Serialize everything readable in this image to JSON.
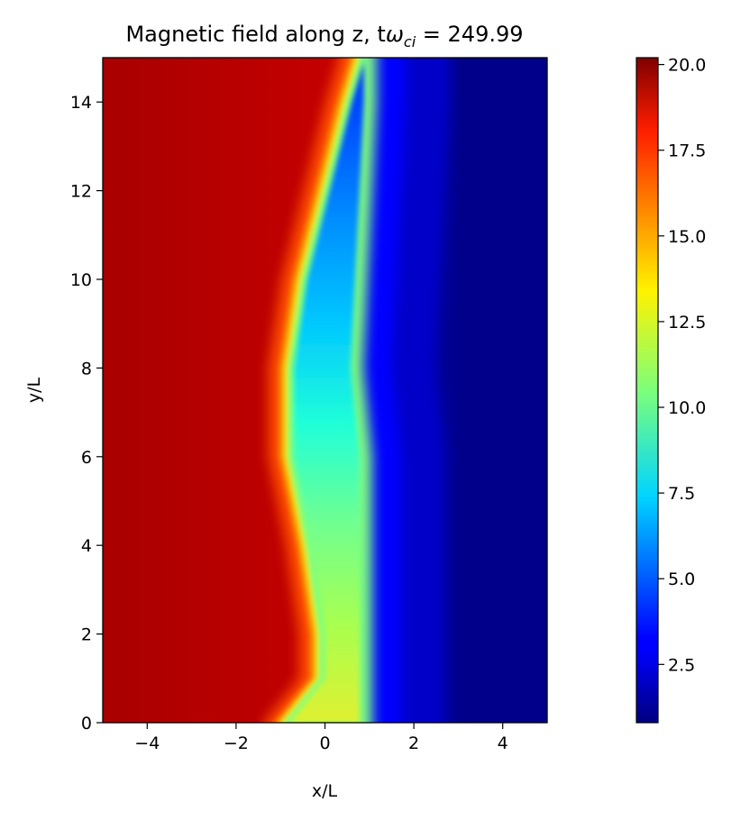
{
  "chart_data": {
    "type": "heatmap",
    "title_text": "Magnetic field along z, t",
    "title_symbol": "ω",
    "title_subscript": "ci",
    "title_value": " = 249.99",
    "xlabel": "x/L",
    "ylabel": "y/L",
    "xlim": [
      -5,
      5
    ],
    "ylim": [
      0,
      15
    ],
    "x_ticks": [
      -4,
      -2,
      0,
      2,
      4
    ],
    "x_tick_labels": [
      "−4",
      "−2",
      "0",
      "2",
      "4"
    ],
    "y_ticks": [
      0,
      2,
      4,
      6,
      8,
      10,
      12,
      14
    ],
    "y_tick_labels": [
      "0",
      "2",
      "4",
      "6",
      "8",
      "10",
      "12",
      "14"
    ],
    "colorbar": {
      "range": [
        0.8,
        20.2
      ],
      "ticks": [
        2.5,
        5.0,
        7.5,
        10.0,
        12.5,
        15.0,
        17.5,
        20.0
      ],
      "tick_labels": [
        "2.5",
        "5.0",
        "7.5",
        "10.0",
        "12.5",
        "15.0",
        "17.5",
        "20.0"
      ],
      "colormap": "jet"
    },
    "field_description": {
      "high_value_left": 19.5,
      "low_value_right": 1.0,
      "interface_profile": [
        {
          "y": 0.0,
          "x_left": -1.0,
          "x_right": 0.9
        },
        {
          "y": 1.0,
          "x_left": -0.2,
          "x_right": 0.9
        },
        {
          "y": 2.0,
          "x_left": -0.2,
          "x_right": 0.9
        },
        {
          "y": 4.0,
          "x_left": -0.5,
          "x_right": 0.9
        },
        {
          "y": 6.0,
          "x_left": -0.9,
          "x_right": 0.9
        },
        {
          "y": 8.0,
          "x_left": -0.9,
          "x_right": 0.7
        },
        {
          "y": 10.0,
          "x_left": -0.6,
          "x_right": 0.8
        },
        {
          "y": 12.0,
          "x_left": -0.1,
          "x_right": 0.9
        },
        {
          "y": 14.0,
          "x_left": 0.4,
          "x_right": 1.0
        },
        {
          "y": 15.0,
          "x_left": 0.7,
          "x_right": 1.0
        }
      ]
    }
  }
}
